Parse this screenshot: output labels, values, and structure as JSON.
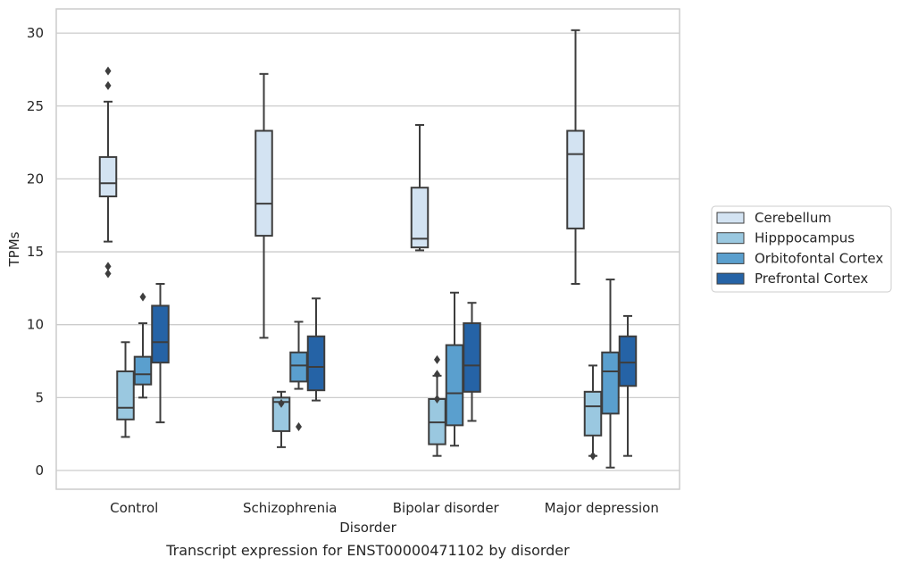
{
  "chart_data": {
    "type": "box",
    "title": "",
    "caption": "Transcript expression for ENST00000471102 by disorder",
    "xlabel": "Disorder",
    "ylabel": "TPMs",
    "ylim": [
      -1.2,
      31.7
    ],
    "yticks": [
      0,
      5,
      10,
      15,
      20,
      25,
      30
    ],
    "grid": "horizontal",
    "legend_position": "right",
    "categories": [
      "Control",
      "Schizophrenia",
      "Bipolar disorder",
      "Major depression"
    ],
    "series": [
      {
        "name": "Cerebellum",
        "color": "#d3e3f2",
        "boxes": [
          {
            "whisker_low": 15.7,
            "q1": 18.8,
            "median": 19.7,
            "q3": 21.5,
            "whisker_high": 25.3,
            "outliers": [
              27.4,
              26.4,
              14.0,
              13.5
            ]
          },
          {
            "whisker_low": 9.1,
            "q1": 16.1,
            "median": 18.3,
            "q3": 23.3,
            "whisker_high": 27.2,
            "outliers": []
          },
          {
            "whisker_low": 15.1,
            "q1": 15.3,
            "median": 15.9,
            "q3": 19.4,
            "whisker_high": 23.7,
            "outliers": []
          },
          {
            "whisker_low": 12.8,
            "q1": 16.6,
            "median": 21.7,
            "q3": 23.3,
            "whisker_high": 30.2,
            "outliers": []
          }
        ]
      },
      {
        "name": "Hipppocampus",
        "color": "#9ac8e0",
        "boxes": [
          {
            "whisker_low": 2.3,
            "q1": 3.5,
            "median": 4.3,
            "q3": 6.8,
            "whisker_high": 8.8,
            "outliers": []
          },
          {
            "whisker_low": 1.6,
            "q1": 2.7,
            "median": 4.7,
            "q3": 5.0,
            "whisker_high": 5.4,
            "outliers": [
              4.6
            ]
          },
          {
            "whisker_low": 1.0,
            "q1": 1.8,
            "median": 3.3,
            "q3": 4.9,
            "whisker_high": 6.5,
            "outliers": [
              7.6,
              6.6,
              4.9
            ]
          },
          {
            "whisker_low": 1.0,
            "q1": 2.4,
            "median": 4.4,
            "q3": 5.4,
            "whisker_high": 7.2,
            "outliers": [
              1.0
            ]
          }
        ]
      },
      {
        "name": "Orbitofontal Cortex",
        "color": "#5a9fce",
        "boxes": [
          {
            "whisker_low": 5.0,
            "q1": 5.9,
            "median": 6.6,
            "q3": 7.8,
            "whisker_high": 10.1,
            "outliers": [
              11.9
            ]
          },
          {
            "whisker_low": 5.6,
            "q1": 6.1,
            "median": 7.2,
            "q3": 8.1,
            "whisker_high": 10.2,
            "outliers": [
              3.0
            ]
          },
          {
            "whisker_low": 1.7,
            "q1": 3.1,
            "median": 5.3,
            "q3": 8.6,
            "whisker_high": 12.2,
            "outliers": []
          },
          {
            "whisker_low": 0.2,
            "q1": 3.9,
            "median": 6.8,
            "q3": 8.1,
            "whisker_high": 13.1,
            "outliers": []
          }
        ]
      },
      {
        "name": "Prefrontal Cortex",
        "color": "#2563a6",
        "boxes": [
          {
            "whisker_low": 3.3,
            "q1": 7.4,
            "median": 8.8,
            "q3": 11.3,
            "whisker_high": 12.8,
            "outliers": []
          },
          {
            "whisker_low": 4.8,
            "q1": 5.5,
            "median": 7.1,
            "q3": 9.2,
            "whisker_high": 11.8,
            "outliers": []
          },
          {
            "whisker_low": 3.4,
            "q1": 5.4,
            "median": 7.2,
            "q3": 10.1,
            "whisker_high": 11.5,
            "outliers": []
          },
          {
            "whisker_low": 1.0,
            "q1": 5.8,
            "median": 7.4,
            "q3": 9.2,
            "whisker_high": 10.6,
            "outliers": []
          }
        ]
      }
    ]
  }
}
